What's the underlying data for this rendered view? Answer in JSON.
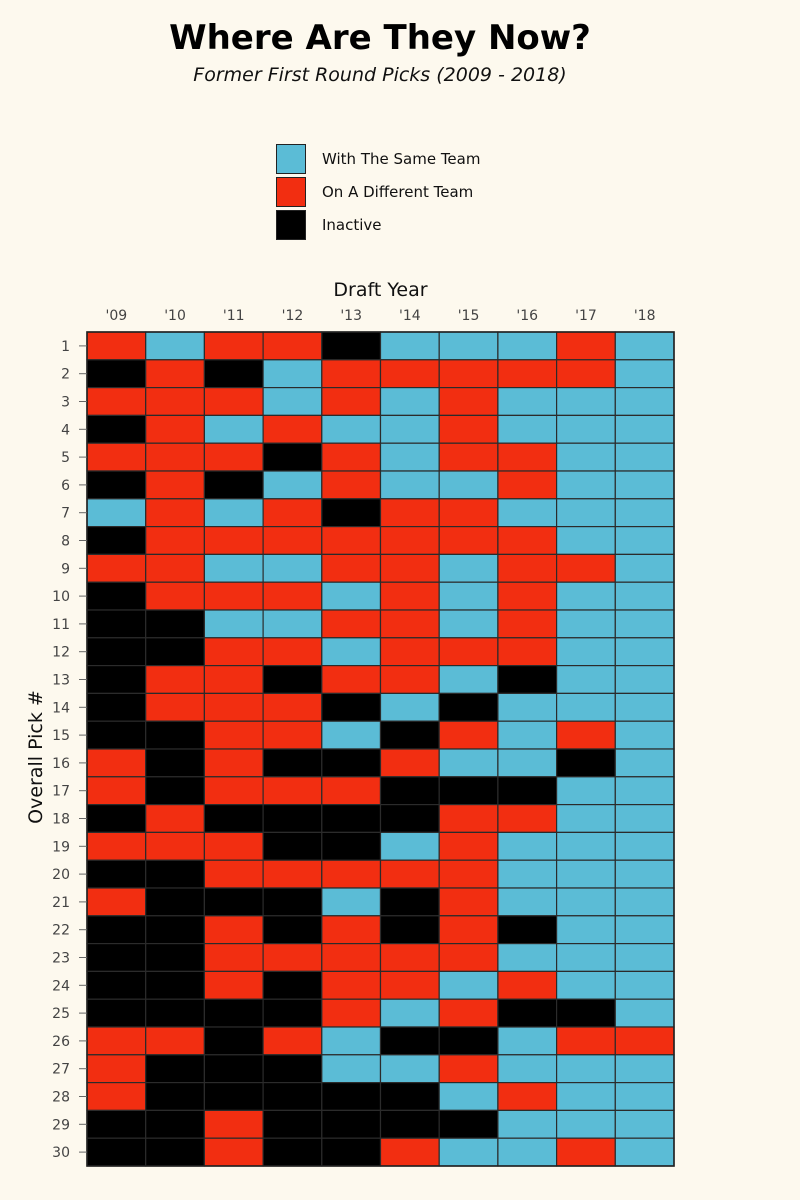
{
  "title": "Where Are They Now?",
  "subtitle": "Former First Round Picks (2009 - 2018)",
  "legend": [
    {
      "label": "With The Same Team",
      "color": "#5bbcd6"
    },
    {
      "label": "On A Different Team",
      "color": "#f22e11"
    },
    {
      "label": "Inactive",
      "color": "#000000"
    }
  ],
  "chart_data": {
    "type": "heatmap",
    "title": "Where Are They Now?",
    "subtitle": "Former First Round Picks (2009 - 2018)",
    "xlabel": "Draft Year",
    "ylabel": "Overall Pick #",
    "x_position": "top",
    "legend_position": "top-center",
    "categories_x": [
      "'09",
      "'10",
      "'11",
      "'12",
      "'13",
      "'14",
      "'15",
      "'16",
      "'17",
      "'18"
    ],
    "categories_y": [
      "1",
      "2",
      "3",
      "4",
      "5",
      "6",
      "7",
      "8",
      "9",
      "10",
      "11",
      "12",
      "13",
      "14",
      "15",
      "16",
      "17",
      "18",
      "19",
      "20",
      "21",
      "22",
      "23",
      "24",
      "25",
      "26",
      "27",
      "28",
      "29",
      "30"
    ],
    "status_codes": {
      "S": "With The Same Team",
      "D": "On A Different Team",
      "I": "Inactive"
    },
    "colors": {
      "S": "#5bbcd6",
      "D": "#f22e11",
      "I": "#000000"
    },
    "rows": [
      [
        "D",
        "S",
        "D",
        "D",
        "I",
        "S",
        "S",
        "S",
        "D",
        "S"
      ],
      [
        "I",
        "D",
        "I",
        "S",
        "D",
        "D",
        "D",
        "D",
        "D",
        "S"
      ],
      [
        "D",
        "D",
        "D",
        "S",
        "D",
        "S",
        "D",
        "S",
        "S",
        "S"
      ],
      [
        "I",
        "D",
        "S",
        "D",
        "S",
        "S",
        "D",
        "S",
        "S",
        "S"
      ],
      [
        "D",
        "D",
        "D",
        "I",
        "D",
        "S",
        "D",
        "D",
        "S",
        "S"
      ],
      [
        "I",
        "D",
        "I",
        "S",
        "D",
        "S",
        "S",
        "D",
        "S",
        "S"
      ],
      [
        "S",
        "D",
        "S",
        "D",
        "I",
        "D",
        "D",
        "S",
        "S",
        "S"
      ],
      [
        "I",
        "D",
        "D",
        "D",
        "D",
        "D",
        "D",
        "D",
        "S",
        "S"
      ],
      [
        "D",
        "D",
        "S",
        "S",
        "D",
        "D",
        "S",
        "D",
        "D",
        "S"
      ],
      [
        "I",
        "D",
        "D",
        "D",
        "S",
        "D",
        "S",
        "D",
        "S",
        "S"
      ],
      [
        "I",
        "I",
        "S",
        "S",
        "D",
        "D",
        "S",
        "D",
        "S",
        "S"
      ],
      [
        "I",
        "I",
        "D",
        "D",
        "S",
        "D",
        "D",
        "D",
        "S",
        "S"
      ],
      [
        "I",
        "D",
        "D",
        "I",
        "D",
        "D",
        "S",
        "I",
        "S",
        "S"
      ],
      [
        "I",
        "D",
        "D",
        "D",
        "I",
        "S",
        "I",
        "S",
        "S",
        "S"
      ],
      [
        "I",
        "I",
        "D",
        "D",
        "S",
        "I",
        "D",
        "S",
        "D",
        "S"
      ],
      [
        "D",
        "I",
        "D",
        "I",
        "I",
        "D",
        "S",
        "S",
        "I",
        "S"
      ],
      [
        "D",
        "I",
        "D",
        "D",
        "D",
        "I",
        "I",
        "I",
        "S",
        "S"
      ],
      [
        "I",
        "D",
        "I",
        "I",
        "I",
        "I",
        "D",
        "D",
        "S",
        "S"
      ],
      [
        "D",
        "D",
        "D",
        "I",
        "I",
        "S",
        "D",
        "S",
        "S",
        "S"
      ],
      [
        "I",
        "I",
        "D",
        "D",
        "D",
        "D",
        "D",
        "S",
        "S",
        "S"
      ],
      [
        "D",
        "I",
        "I",
        "I",
        "S",
        "I",
        "D",
        "S",
        "S",
        "S"
      ],
      [
        "I",
        "I",
        "D",
        "I",
        "D",
        "I",
        "D",
        "I",
        "S",
        "S"
      ],
      [
        "I",
        "I",
        "D",
        "D",
        "D",
        "D",
        "D",
        "S",
        "S",
        "S"
      ],
      [
        "I",
        "I",
        "D",
        "I",
        "D",
        "D",
        "S",
        "D",
        "S",
        "S"
      ],
      [
        "I",
        "I",
        "I",
        "I",
        "D",
        "S",
        "D",
        "I",
        "I",
        "S"
      ],
      [
        "D",
        "D",
        "I",
        "D",
        "S",
        "I",
        "I",
        "S",
        "D",
        "D"
      ],
      [
        "D",
        "I",
        "I",
        "I",
        "S",
        "S",
        "D",
        "S",
        "S",
        "S"
      ],
      [
        "D",
        "I",
        "I",
        "I",
        "I",
        "I",
        "S",
        "D",
        "S",
        "S"
      ],
      [
        "I",
        "I",
        "D",
        "I",
        "I",
        "I",
        "I",
        "S",
        "S",
        "S"
      ],
      [
        "I",
        "I",
        "D",
        "I",
        "I",
        "D",
        "S",
        "S",
        "D",
        "S"
      ]
    ]
  }
}
